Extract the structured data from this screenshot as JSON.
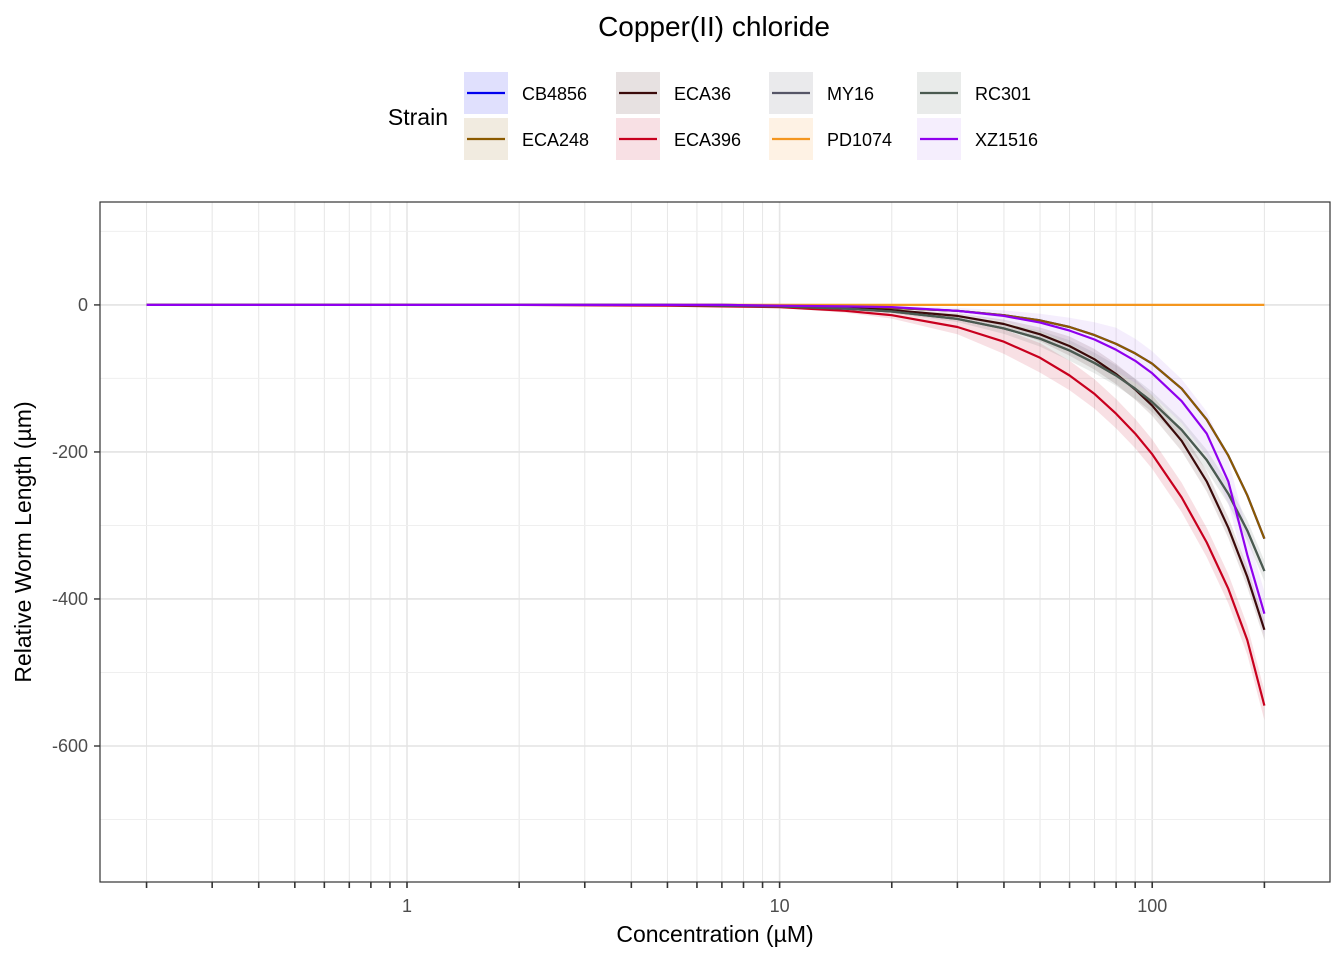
{
  "chart_data": {
    "type": "line",
    "title": "Copper(II) chloride",
    "xlabel": "Concentration (µM)",
    "ylabel": "Relative Worm Length (µm)",
    "x_scale": "log10",
    "xlim": [
      0.15,
      300
    ],
    "ylim": [
      -785,
      140
    ],
    "x_ticks": [
      {
        "value": 1,
        "label": "1"
      },
      {
        "value": 10,
        "label": "10"
      },
      {
        "value": 100,
        "label": "100"
      }
    ],
    "y_ticks": [
      {
        "value": 0,
        "label": "0"
      },
      {
        "value": -200,
        "label": "-200"
      },
      {
        "value": -400,
        "label": "-400"
      },
      {
        "value": -600,
        "label": "-600"
      }
    ],
    "grid": true,
    "legend": {
      "title": "Strain",
      "position": "top"
    },
    "x": [
      0.2,
      0.3,
      0.5,
      1,
      2,
      3,
      5,
      7,
      10,
      15,
      20,
      30,
      40,
      50,
      60,
      70,
      80,
      90,
      100,
      120,
      140,
      160,
      180,
      200
    ],
    "series": [
      {
        "name": "CB4856",
        "color": "#0000ee",
        "values": [
          0,
          0,
          0,
          0,
          0,
          0,
          0,
          0,
          -1,
          -2,
          -4,
          -8,
          -14,
          -21,
          -30,
          -41,
          -53,
          -66,
          -80,
          -114,
          -156,
          -205,
          -259,
          -318
        ]
      },
      {
        "name": "ECA248",
        "color": "#8b5a00",
        "values": [
          0,
          0,
          0,
          0,
          0,
          0,
          0,
          0,
          -1,
          -2,
          -4,
          -8,
          -14,
          -21,
          -30,
          -41,
          -53,
          -66,
          -80,
          -114,
          -156,
          -205,
          -259,
          -318
        ]
      },
      {
        "name": "ECA36",
        "color": "#3b0a0a",
        "band": 14,
        "band_color": "#3b0a0a",
        "values": [
          0,
          0,
          0,
          0,
          0,
          0,
          -0.5,
          -1,
          -2,
          -4,
          -7,
          -15,
          -26,
          -40,
          -56,
          -74,
          -94,
          -115,
          -137,
          -185,
          -240,
          -303,
          -370,
          -442
        ]
      },
      {
        "name": "ECA396",
        "color": "#c8001e",
        "band": 20,
        "band_color": "#c8001e",
        "values": [
          0,
          0,
          0,
          0,
          0,
          -0.5,
          -1,
          -2,
          -3,
          -8,
          -14,
          -30,
          -50,
          -72,
          -96,
          -121,
          -148,
          -175,
          -203,
          -262,
          -323,
          -386,
          -456,
          -545
        ]
      },
      {
        "name": "MY16",
        "color": "#555566",
        "values": [
          0,
          0,
          0,
          0,
          0,
          0,
          0,
          -1,
          -2,
          -5,
          -9,
          -19,
          -32,
          -46,
          -62,
          -79,
          -96,
          -114,
          -132,
          -170,
          -211,
          -257,
          -307,
          -362
        ]
      },
      {
        "name": "PD1074",
        "color": "#f4961e",
        "values": [
          0,
          0,
          0,
          0,
          0,
          0,
          0,
          0,
          0,
          0,
          0,
          0,
          0,
          0,
          0,
          0,
          0,
          0,
          0,
          0,
          0,
          0,
          0,
          0
        ]
      },
      {
        "name": "RC301",
        "color": "#4a5a50",
        "band": 14,
        "band_color": "#4a5a50",
        "values": [
          0,
          0,
          0,
          0,
          0,
          0,
          0,
          -1,
          -2,
          -5,
          -9,
          -19,
          -32,
          -46,
          -62,
          -79,
          -96,
          -114,
          -132,
          -170,
          -211,
          -257,
          -307,
          -362
        ]
      },
      {
        "name": "XZ1516",
        "color": "#8f00ee",
        "band": 30,
        "band_color": "#b070f0",
        "values": [
          0,
          0,
          0,
          0,
          0,
          0,
          0,
          0,
          -1,
          -2,
          -3,
          -8,
          -15,
          -24,
          -35,
          -47,
          -61,
          -76,
          -93,
          -131,
          -175,
          -240,
          -340,
          -420
        ]
      }
    ]
  }
}
